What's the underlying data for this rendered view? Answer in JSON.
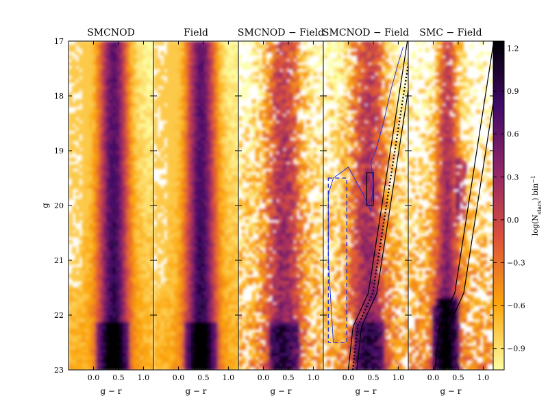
{
  "chart_data": {
    "type": "heatmap",
    "yaxis": {
      "label": "g",
      "range": [
        23,
        17
      ],
      "ticks": [
        "17",
        "18",
        "19",
        "20",
        "21",
        "22",
        "23"
      ]
    },
    "xaxis": {
      "label": "g − r",
      "range": [
        -0.5,
        1.2
      ],
      "ticks": [
        "0.0",
        "0.5",
        "1.0"
      ],
      "tick_values": [
        0.0,
        0.5,
        1.0
      ]
    },
    "panels": [
      {
        "title": "SMCNOD",
        "kind": "dense",
        "peak_color": 0.4
      },
      {
        "title": "Field",
        "kind": "dense",
        "peak_color": 0.45
      },
      {
        "title": "SMCNOD − Field",
        "kind": "subtracted",
        "peak_color": 0.4
      },
      {
        "title": "SMCNOD − Field",
        "kind": "subtracted-annotated",
        "peak_color": 0.4,
        "box_blue_dashed": {
          "x": [
            -0.4,
            -0.03
          ],
          "y": [
            19.5,
            22.5
          ]
        },
        "box_black": {
          "x": [
            0.37,
            0.5
          ],
          "y": [
            19.4,
            20.0
          ]
        }
      },
      {
        "title": "SMC − Field",
        "kind": "smc",
        "peak_color": 0.3
      }
    ],
    "colorbar": {
      "label": "log(N_stars) bin⁻¹",
      "label_main": "log(N",
      "label_sub": "stars",
      "label_tail": ") bin",
      "label_sup": "−1",
      "range": [
        -1.05,
        1.25
      ],
      "ticks": [
        "1.2",
        "0.9",
        "0.6",
        "0.3",
        "0.0",
        "−0.3",
        "−0.6",
        "−0.9"
      ],
      "tick_values": [
        1.2,
        0.9,
        0.6,
        0.3,
        0.0,
        -0.3,
        -0.6,
        -0.9
      ],
      "colormap": "inferno_r",
      "stops": [
        "#fcffa4",
        "#fca50a",
        "#dd513a",
        "#932667",
        "#420a68",
        "#000004"
      ]
    }
  }
}
